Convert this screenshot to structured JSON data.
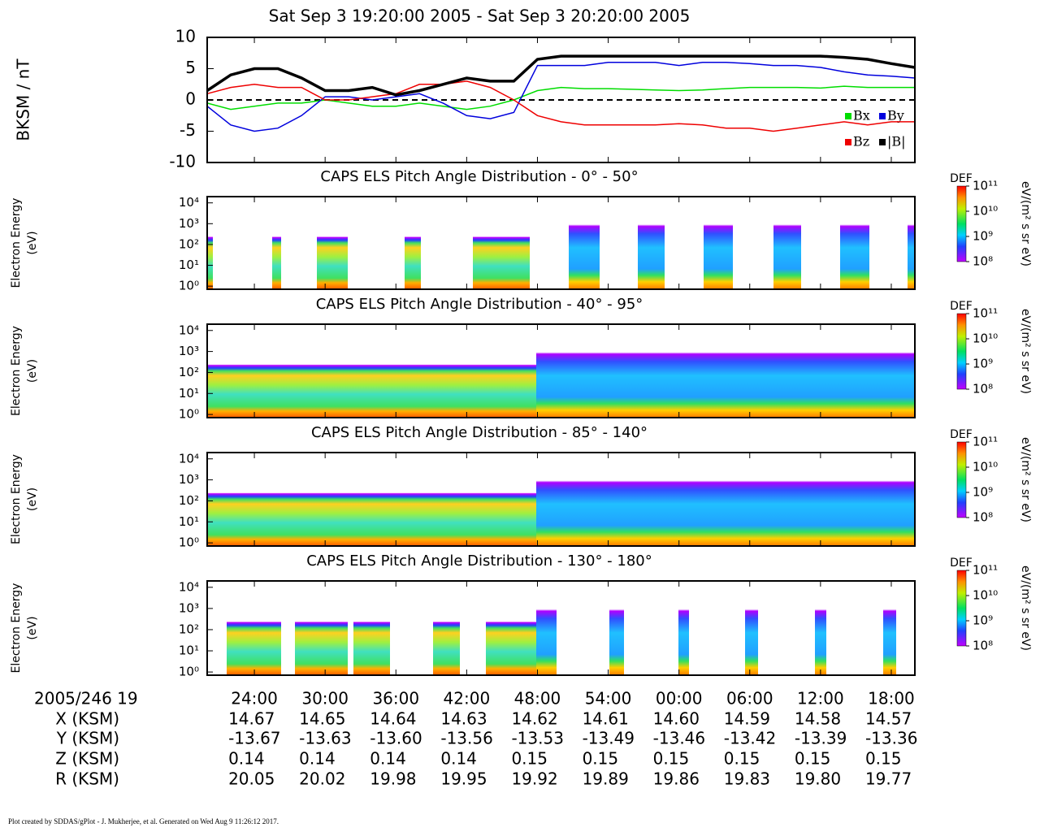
{
  "chart_data": [
    {
      "type": "line",
      "title": "Sat Sep 3 19:20:00 2005 - Sat Sep 3 20:20:00 2005",
      "ylabel": "BKSM / nT",
      "xlim": [
        0,
        60
      ],
      "xticks": [
        {
          "value": 4,
          "label": "24:00"
        },
        {
          "value": 10,
          "label": "30:00"
        },
        {
          "value": 16,
          "label": "36:00"
        },
        {
          "value": 22,
          "label": "42:00"
        },
        {
          "value": 28,
          "label": "48:00"
        },
        {
          "value": 34,
          "label": "54:00"
        },
        {
          "value": 40,
          "label": "00:00"
        },
        {
          "value": 46,
          "label": "06:00"
        },
        {
          "value": 52,
          "label": "12:00"
        },
        {
          "value": 58,
          "label": "18:00"
        }
      ],
      "ylim": [
        -10,
        10
      ],
      "yticks": [
        -10,
        -5,
        0,
        5,
        10
      ],
      "zero_line": true,
      "legend": "lower right",
      "x": [
        0,
        2,
        4,
        6,
        8,
        10,
        12,
        14,
        16,
        18,
        20,
        22,
        24,
        26,
        28,
        30,
        32,
        34,
        36,
        38,
        40,
        42,
        44,
        46,
        48,
        50,
        52,
        54,
        56,
        58,
        60
      ],
      "series": [
        {
          "name": "Bx",
          "color": "#00dd00",
          "values": [
            -0.5,
            -1.5,
            -1,
            -0.5,
            -0.5,
            0,
            -0.5,
            -1,
            -1,
            -0.5,
            -1,
            -1.5,
            -1,
            0,
            1.5,
            2,
            1.8,
            1.8,
            1.7,
            1.6,
            1.5,
            1.6,
            1.8,
            2,
            2,
            2,
            1.9,
            2.2,
            2,
            2,
            2
          ]
        },
        {
          "name": "By",
          "color": "#0000dd",
          "values": [
            -1,
            -4,
            -5,
            -4.5,
            -2.5,
            0.5,
            0.5,
            0,
            0.5,
            1,
            -0.5,
            -2.5,
            -3,
            -2,
            5.5,
            5.5,
            5.5,
            6,
            6,
            6,
            5.5,
            6,
            6,
            5.8,
            5.5,
            5.5,
            5.2,
            4.5,
            4,
            3.8,
            3.5
          ]
        },
        {
          "name": "Bz",
          "color": "#ee0000",
          "values": [
            1,
            2,
            2.5,
            2,
            2,
            0,
            0,
            0.5,
            1,
            2.5,
            2.5,
            3,
            2,
            0,
            -2.5,
            -3.5,
            -4,
            -4,
            -4,
            -4,
            -3.8,
            -4,
            -4.5,
            -4.5,
            -5,
            -4.5,
            -4,
            -3.5,
            -4,
            -3.5,
            -3.5
          ]
        },
        {
          "name": "|B|",
          "color": "#000000",
          "values": [
            1.5,
            4,
            5,
            5,
            3.5,
            1.5,
            1.5,
            2,
            0.8,
            1.5,
            2.5,
            3.5,
            3,
            3,
            6.5,
            7,
            7,
            7,
            7,
            7,
            7,
            7,
            7,
            7,
            7,
            7,
            7,
            6.8,
            6.5,
            5.8,
            5.2
          ]
        }
      ]
    },
    {
      "type": "spectrogram",
      "title": "CAPS ELS Pitch Angle Distribution - 0° - 50°",
      "ylabel": [
        "Electron Energy",
        "(eV)"
      ],
      "ylim": [
        -0.15,
        4.3
      ],
      "yticks": [
        {
          "value": 0,
          "label": "10⁰"
        },
        {
          "value": 1,
          "label": "10¹"
        },
        {
          "value": 2,
          "label": "10²"
        },
        {
          "value": 3,
          "label": "10³"
        },
        {
          "value": 4,
          "label": "10⁴"
        }
      ],
      "colorbar": {
        "label": "DEF",
        "unit": "eV/(m² s sr eV)",
        "clim": [
          8,
          11
        ],
        "ticks": [
          {
            "value": 11,
            "label": "10¹¹"
          },
          {
            "value": 10,
            "label": "10¹⁰"
          },
          {
            "value": 9,
            "label": "10⁹"
          },
          {
            "value": 8,
            "label": "10⁸"
          }
        ]
      }
    },
    {
      "type": "spectrogram",
      "title": "CAPS ELS Pitch Angle Distribution - 40° - 95°",
      "ylabel": [
        "Electron Energy",
        "(eV)"
      ],
      "ylim": [
        -0.15,
        4.3
      ],
      "yticks": [
        {
          "value": 0,
          "label": "10⁰"
        },
        {
          "value": 1,
          "label": "10¹"
        },
        {
          "value": 2,
          "label": "10²"
        },
        {
          "value": 3,
          "label": "10³"
        },
        {
          "value": 4,
          "label": "10⁴"
        }
      ],
      "colorbar": {
        "label": "DEF",
        "unit": "eV/(m² s sr eV)",
        "clim": [
          8,
          11
        ],
        "ticks": [
          {
            "value": 11,
            "label": "10¹¹"
          },
          {
            "value": 10,
            "label": "10¹⁰"
          },
          {
            "value": 9,
            "label": "10⁹"
          },
          {
            "value": 8,
            "label": "10⁸"
          }
        ]
      }
    },
    {
      "type": "spectrogram",
      "title": "CAPS ELS Pitch Angle Distribution - 85° - 140°",
      "ylabel": [
        "Electron Energy",
        "(eV)"
      ],
      "ylim": [
        -0.15,
        4.3
      ],
      "yticks": [
        {
          "value": 0,
          "label": "10⁰"
        },
        {
          "value": 1,
          "label": "10¹"
        },
        {
          "value": 2,
          "label": "10²"
        },
        {
          "value": 3,
          "label": "10³"
        },
        {
          "value": 4,
          "label": "10⁴"
        }
      ],
      "colorbar": {
        "label": "DEF",
        "unit": "eV/(m² s sr eV)",
        "clim": [
          8,
          11
        ],
        "ticks": [
          {
            "value": 11,
            "label": "10¹¹"
          },
          {
            "value": 10,
            "label": "10¹⁰"
          },
          {
            "value": 9,
            "label": "10⁹"
          },
          {
            "value": 8,
            "label": "10⁸"
          }
        ]
      }
    },
    {
      "type": "spectrogram",
      "title": "CAPS ELS Pitch Angle Distribution - 130° - 180°",
      "ylabel": [
        "Electron Energy",
        "(eV)"
      ],
      "ylim": [
        -0.15,
        4.3
      ],
      "yticks": [
        {
          "value": 0,
          "label": "10⁰"
        },
        {
          "value": 1,
          "label": "10¹"
        },
        {
          "value": 2,
          "label": "10²"
        },
        {
          "value": 3,
          "label": "10³"
        },
        {
          "value": 4,
          "label": "10⁴"
        }
      ],
      "colorbar": {
        "label": "DEF",
        "unit": "eV/(m² s sr eV)",
        "clim": [
          8,
          11
        ],
        "ticks": [
          {
            "value": 11,
            "label": "10¹¹"
          },
          {
            "value": 10,
            "label": "10¹⁰"
          },
          {
            "value": 9,
            "label": "10⁹"
          },
          {
            "value": 8,
            "label": "10⁸"
          }
        ]
      }
    }
  ],
  "table": {
    "header": "2005/246 19",
    "rows": [
      {
        "label": "X (KSM)",
        "values": [
          "14.67",
          "14.65",
          "14.64",
          "14.63",
          "14.62",
          "14.61",
          "14.60",
          "14.59",
          "14.58",
          "14.57"
        ]
      },
      {
        "label": "Y (KSM)",
        "values": [
          "-13.67",
          "-13.63",
          "-13.60",
          "-13.56",
          "-13.53",
          "-13.49",
          "-13.46",
          "-13.42",
          "-13.39",
          "-13.36"
        ]
      },
      {
        "label": "Z (KSM)",
        "values": [
          "0.14",
          "0.14",
          "0.14",
          "0.14",
          "0.15",
          "0.15",
          "0.15",
          "0.15",
          "0.15",
          "0.15"
        ]
      },
      {
        "label": "R (KSM)",
        "values": [
          "20.05",
          "20.02",
          "19.98",
          "19.95",
          "19.92",
          "19.89",
          "19.86",
          "19.83",
          "19.80",
          "19.77"
        ]
      }
    ]
  },
  "footer": "Plot created by SDDAS/gPlot - J. Mukherjee, et al.  Generated on Wed Aug 9 11:26:12 2017."
}
